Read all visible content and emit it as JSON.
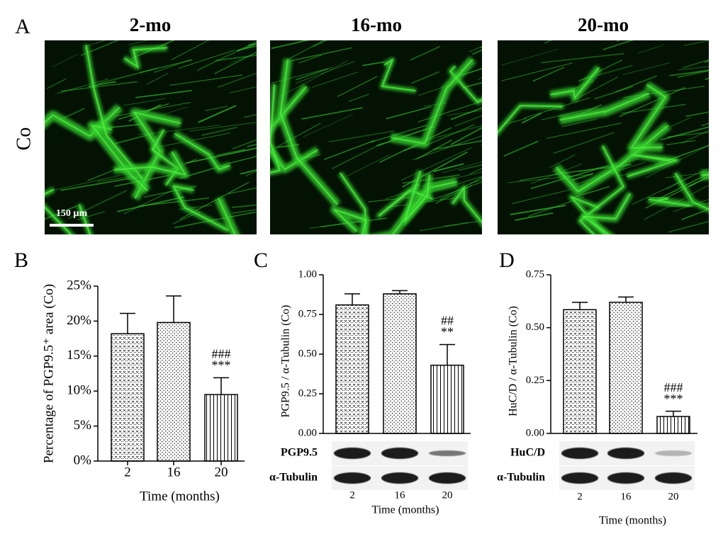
{
  "panel_a": {
    "label": "A",
    "row_label": "Co",
    "columns": [
      "2-mo",
      "16-mo",
      "20-mo"
    ],
    "scale_bar": "150 µm"
  },
  "chart_data": [
    {
      "type": "bar",
      "panel": "B",
      "ylabel": "Percentage of PGP9.5⁺ area (Co)",
      "xlabel": "Time (months)",
      "categories": [
        "2",
        "16",
        "20"
      ],
      "values": [
        18.2,
        19.8,
        9.5
      ],
      "errors": [
        2.9,
        3.8,
        2.4
      ],
      "ylim": [
        0,
        25
      ],
      "yticks": [
        {
          "value": 0,
          "label": "0%"
        },
        {
          "value": 5,
          "label": "5%"
        },
        {
          "value": 10,
          "label": "10%"
        },
        {
          "value": 15,
          "label": "15%"
        },
        {
          "value": 20,
          "label": "20%"
        },
        {
          "value": 25,
          "label": "25%"
        }
      ],
      "annotations": [
        "###",
        "***"
      ],
      "color": "#000000"
    },
    {
      "type": "bar",
      "panel": "C",
      "ylabel": "PGP9.5 / α-Tubulin (Co)",
      "xlabel": "Time (months)",
      "categories": [
        "2",
        "16",
        "20"
      ],
      "values": [
        0.81,
        0.88,
        0.43
      ],
      "errors": [
        0.07,
        0.02,
        0.13
      ],
      "ylim": [
        0,
        1
      ],
      "yticks": [
        {
          "value": 0,
          "label": "0.00"
        },
        {
          "value": 0.25,
          "label": "0.25"
        },
        {
          "value": 0.5,
          "label": "0.50"
        },
        {
          "value": 0.75,
          "label": "0.75"
        },
        {
          "value": 1,
          "label": "1.00"
        }
      ],
      "annotations": [
        "##",
        "**"
      ],
      "blot_labels": [
        "PGP9.5",
        "α-Tubulin"
      ],
      "color": "#000000"
    },
    {
      "type": "bar",
      "panel": "D",
      "ylabel": "HuC/D / α-Tubulin (Co)",
      "xlabel": "Time (months)",
      "categories": [
        "2",
        "16",
        "20"
      ],
      "values": [
        0.585,
        0.62,
        0.08
      ],
      "errors": [
        0.035,
        0.025,
        0.025
      ],
      "ylim": [
        0,
        0.75
      ],
      "yticks": [
        {
          "value": 0,
          "label": "0.00"
        },
        {
          "value": 0.25,
          "label": "0.25"
        },
        {
          "value": 0.5,
          "label": "0.50"
        },
        {
          "value": 0.75,
          "label": "0.75"
        }
      ],
      "annotations": [
        "###",
        "***"
      ],
      "blot_labels": [
        "HuC/D",
        "α-Tubulin"
      ],
      "color": "#000000"
    }
  ]
}
